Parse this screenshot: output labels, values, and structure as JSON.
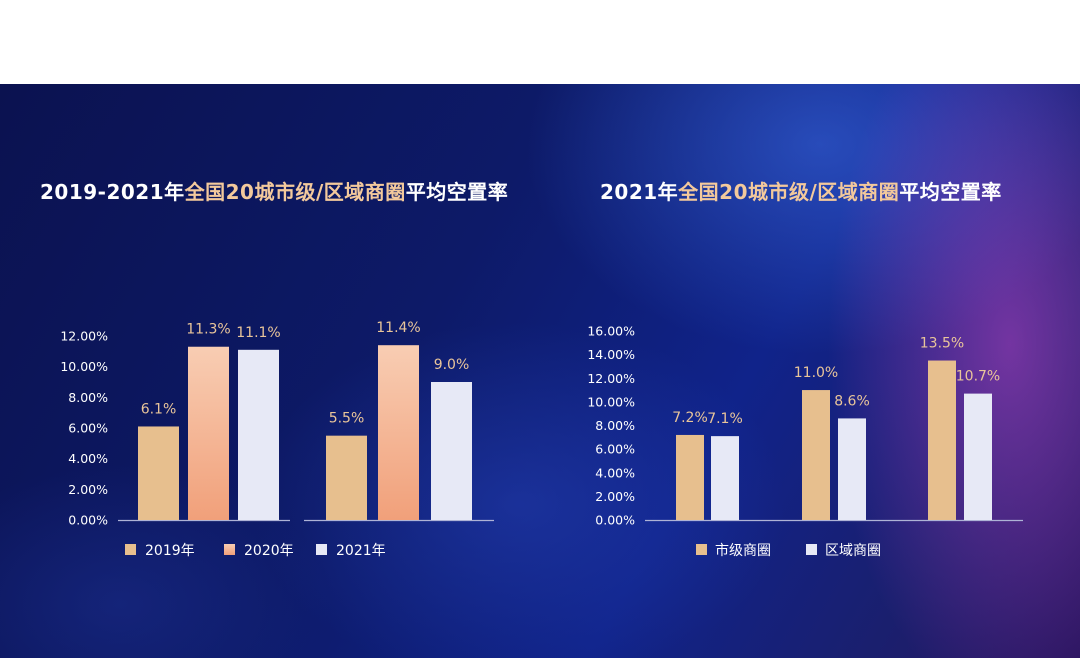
{
  "colors": {
    "white_text": "#ffffff",
    "highlight_text": "#f3c99c",
    "bar_2019": "#e7bf8e",
    "bar_2020_top": "#f8cdb3",
    "bar_2020_bottom": "#f1a07a",
    "bar_2021": "#e7e9f6",
    "axis_line": "#aeb3d6",
    "tick_text": "#ffffff",
    "value_label": "#e9c59a"
  },
  "chart_data": [
    {
      "type": "bar",
      "title_parts": {
        "pre": "2019-2021年",
        "highlight": "全国20城市级/区域商圈",
        "post": "平均空置率"
      },
      "categories": [
        "",
        ""
      ],
      "series": [
        {
          "name": "2019年",
          "values": [
            6.1,
            5.5
          ],
          "labels": [
            "6.1%",
            "5.5%"
          ],
          "color": "#e7bf8e"
        },
        {
          "name": "2020年",
          "values": [
            11.3,
            11.4
          ],
          "labels": [
            "11.3%",
            "11.4%"
          ],
          "color": "#f4b08f"
        },
        {
          "name": "2021年",
          "values": [
            11.1,
            9.0
          ],
          "labels": [
            "11.1%",
            "9.0%"
          ],
          "color": "#e7e9f6"
        }
      ],
      "ylim": [
        0,
        12
      ],
      "yticks": [
        0,
        2,
        4,
        6,
        8,
        10,
        12
      ],
      "ytick_labels": [
        "0.00%",
        "2.00%",
        "4.00%",
        "6.00%",
        "8.00%",
        "10.00%",
        "12.00%"
      ],
      "grid": false,
      "legend": "bottom"
    },
    {
      "type": "bar",
      "title_parts": {
        "pre": "2021年",
        "highlight": "全国20城市级/区域商圈",
        "post": "平均空置率"
      },
      "categories": [
        "",
        "",
        ""
      ],
      "series": [
        {
          "name": "市级商圈",
          "values": [
            7.2,
            11.0,
            13.5
          ],
          "labels": [
            "7.2%",
            "11.0%",
            "13.5%"
          ],
          "color": "#e7bf8e"
        },
        {
          "name": "区域商圈",
          "values": [
            7.1,
            8.6,
            10.7
          ],
          "labels": [
            "7.1%",
            "8.6%",
            "10.7%"
          ],
          "color": "#e7e9f6"
        }
      ],
      "ylim": [
        0,
        16
      ],
      "yticks": [
        0,
        2,
        4,
        6,
        8,
        10,
        12,
        14,
        16
      ],
      "ytick_labels": [
        "0.00%",
        "2.00%",
        "4.00%",
        "6.00%",
        "8.00%",
        "10.00%",
        "12.00%",
        "14.00%",
        "16.00%"
      ],
      "grid": false,
      "legend": "bottom"
    }
  ]
}
